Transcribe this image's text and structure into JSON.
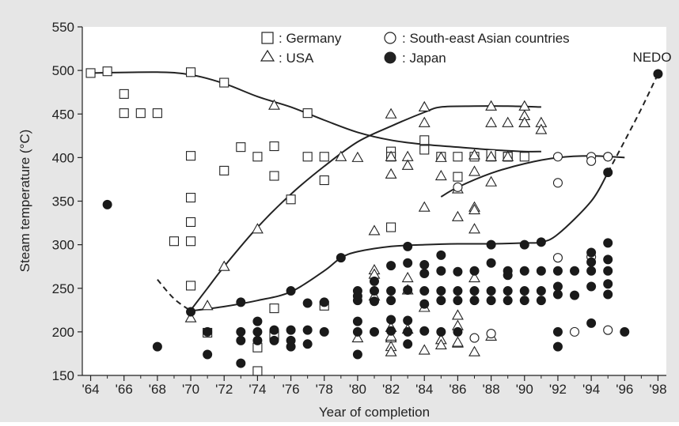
{
  "chart_data": {
    "type": "scatter",
    "xlabel": "Year of completion",
    "ylabel": "Steam temperature (°C)",
    "xlim": [
      1963.5,
      1998.5
    ],
    "ylim": [
      150,
      550
    ],
    "x_ticks": [
      1964,
      1966,
      1968,
      1970,
      1972,
      1974,
      1976,
      1978,
      1980,
      1982,
      1984,
      1986,
      1988,
      1990,
      1992,
      1994,
      1996,
      1998
    ],
    "x_tick_labels": [
      "'64",
      "'66",
      "'68",
      "'70",
      "'72",
      "'74",
      "'76",
      "'78",
      "'80",
      "'82",
      "'84",
      "'86",
      "'88",
      "'90",
      "'92",
      "'94",
      "'96",
      "'98"
    ],
    "y_ticks": [
      150,
      200,
      250,
      300,
      350,
      400,
      450,
      500,
      550
    ],
    "y_tick_labels": [
      "150",
      "200",
      "250",
      "300",
      "350",
      "400",
      "450",
      "500",
      "550"
    ],
    "grid": false,
    "legend_position": "top",
    "legend": [
      {
        "marker": "open-square",
        "label": ": Germany"
      },
      {
        "marker": "open-circle",
        "label": ": South-east Asian countries"
      },
      {
        "marker": "open-triangle",
        "label": ": USA"
      },
      {
        "marker": "filled-circle",
        "label": ":  Japan"
      }
    ],
    "annotations": [
      {
        "text": "NEDO",
        "x": 1998,
        "y": 512
      }
    ],
    "series": [
      {
        "name": "Germany",
        "marker": "open-square",
        "points": [
          [
            1964,
            497
          ],
          [
            1965,
            499
          ],
          [
            1966,
            473
          ],
          [
            1966,
            451
          ],
          [
            1967,
            451
          ],
          [
            1968,
            451
          ],
          [
            1969,
            304
          ],
          [
            1970,
            498
          ],
          [
            1970,
            402
          ],
          [
            1970,
            354
          ],
          [
            1970,
            326
          ],
          [
            1970,
            304
          ],
          [
            1970,
            253
          ],
          [
            1971,
            199
          ],
          [
            1972,
            486
          ],
          [
            1972,
            385
          ],
          [
            1973,
            412
          ],
          [
            1974,
            401
          ],
          [
            1974,
            182
          ],
          [
            1974,
            155
          ],
          [
            1975,
            413
          ],
          [
            1975,
            379
          ],
          [
            1975,
            227
          ],
          [
            1975,
            196
          ],
          [
            1976,
            352
          ],
          [
            1977,
            451
          ],
          [
            1977,
            401
          ],
          [
            1978,
            401
          ],
          [
            1978,
            374
          ],
          [
            1978,
            230
          ],
          [
            1982,
            407
          ],
          [
            1982,
            401
          ],
          [
            1982,
            320
          ],
          [
            1984,
            420
          ],
          [
            1984,
            409
          ],
          [
            1985,
            401
          ],
          [
            1986,
            378
          ],
          [
            1986,
            401
          ],
          [
            1987,
            401
          ],
          [
            1988,
            401
          ],
          [
            1988,
            404
          ],
          [
            1989,
            401
          ],
          [
            1989,
            401
          ],
          [
            1990,
            401
          ]
        ]
      },
      {
        "name": "USA",
        "marker": "open-triangle",
        "points": [
          [
            1970,
            216
          ],
          [
            1971,
            230
          ],
          [
            1972,
            275
          ],
          [
            1974,
            318
          ],
          [
            1975,
            460
          ],
          [
            1979,
            401
          ],
          [
            1980,
            400
          ],
          [
            1980,
            193
          ],
          [
            1981,
            316
          ],
          [
            1981,
            271
          ],
          [
            1981,
            266
          ],
          [
            1981,
            241
          ],
          [
            1982,
            450
          ],
          [
            1982,
            401
          ],
          [
            1982,
            381
          ],
          [
            1982,
            205
          ],
          [
            1982,
            193
          ],
          [
            1982,
            183
          ],
          [
            1982,
            177
          ],
          [
            1982,
            195
          ],
          [
            1983,
            401
          ],
          [
            1983,
            391
          ],
          [
            1983,
            262
          ],
          [
            1983,
            248
          ],
          [
            1983,
            203
          ],
          [
            1984,
            458
          ],
          [
            1984,
            440
          ],
          [
            1984,
            343
          ],
          [
            1984,
            228
          ],
          [
            1984,
            179
          ],
          [
            1985,
            400
          ],
          [
            1985,
            379
          ],
          [
            1985,
            191
          ],
          [
            1985,
            185
          ],
          [
            1986,
            364
          ],
          [
            1986,
            332
          ],
          [
            1986,
            219
          ],
          [
            1986,
            207
          ],
          [
            1986,
            187
          ],
          [
            1987,
            403
          ],
          [
            1987,
            384
          ],
          [
            1987,
            343
          ],
          [
            1987,
            340
          ],
          [
            1987,
            318
          ],
          [
            1987,
            262
          ],
          [
            1987,
            177
          ],
          [
            1988,
            459
          ],
          [
            1988,
            440
          ],
          [
            1988,
            401
          ],
          [
            1988,
            372
          ],
          [
            1988,
            195
          ],
          [
            1989,
            440
          ],
          [
            1989,
            401
          ],
          [
            1990,
            440
          ],
          [
            1990,
            448
          ],
          [
            1990,
            459
          ],
          [
            1990,
            440
          ],
          [
            1991,
            440
          ],
          [
            1991,
            432
          ],
          [
            1986,
            188
          ]
        ]
      },
      {
        "name": "South-east Asian countries",
        "marker": "open-circle",
        "points": [
          [
            1986,
            366
          ],
          [
            1987,
            193
          ],
          [
            1988,
            198
          ],
          [
            1992,
            401
          ],
          [
            1992,
            371
          ],
          [
            1992,
            285
          ],
          [
            1993,
            200
          ],
          [
            1994,
            401
          ],
          [
            1994,
            396
          ],
          [
            1994,
            286
          ],
          [
            1995,
            401
          ],
          [
            1995,
            401
          ],
          [
            1995,
            202
          ]
        ]
      },
      {
        "name": "Japan",
        "marker": "filled-circle",
        "points": [
          [
            1965,
            346
          ],
          [
            1968,
            183
          ],
          [
            1970,
            223
          ],
          [
            1971,
            200
          ],
          [
            1971,
            174
          ],
          [
            1973,
            234
          ],
          [
            1973,
            200
          ],
          [
            1973,
            190
          ],
          [
            1973,
            164
          ],
          [
            1974,
            200
          ],
          [
            1974,
            190
          ],
          [
            1974,
            212
          ],
          [
            1975,
            202
          ],
          [
            1975,
            190
          ],
          [
            1976,
            247
          ],
          [
            1976,
            202
          ],
          [
            1976,
            190
          ],
          [
            1976,
            183
          ],
          [
            1977,
            233
          ],
          [
            1977,
            202
          ],
          [
            1977,
            186
          ],
          [
            1978,
            234
          ],
          [
            1978,
            200
          ],
          [
            1979,
            285
          ],
          [
            1980,
            247
          ],
          [
            1980,
            241
          ],
          [
            1980,
            236
          ],
          [
            1980,
            212
          ],
          [
            1980,
            200
          ],
          [
            1980,
            174
          ],
          [
            1981,
            258
          ],
          [
            1981,
            247
          ],
          [
            1981,
            235
          ],
          [
            1981,
            200
          ],
          [
            1982,
            276
          ],
          [
            1982,
            247
          ],
          [
            1982,
            236
          ],
          [
            1982,
            214
          ],
          [
            1982,
            201
          ],
          [
            1983,
            298
          ],
          [
            1983,
            279
          ],
          [
            1983,
            248
          ],
          [
            1983,
            213
          ],
          [
            1983,
            200
          ],
          [
            1983,
            186
          ],
          [
            1984,
            277
          ],
          [
            1984,
            267
          ],
          [
            1984,
            247
          ],
          [
            1984,
            232
          ],
          [
            1984,
            201
          ],
          [
            1985,
            288
          ],
          [
            1985,
            270
          ],
          [
            1985,
            247
          ],
          [
            1985,
            236
          ],
          [
            1985,
            200
          ],
          [
            1986,
            269
          ],
          [
            1986,
            247
          ],
          [
            1986,
            236
          ],
          [
            1986,
            200
          ],
          [
            1987,
            270
          ],
          [
            1987,
            247
          ],
          [
            1987,
            236
          ],
          [
            1988,
            300
          ],
          [
            1988,
            279
          ],
          [
            1988,
            247
          ],
          [
            1988,
            236
          ],
          [
            1989,
            270
          ],
          [
            1989,
            247
          ],
          [
            1989,
            236
          ],
          [
            1989,
            265
          ],
          [
            1990,
            300
          ],
          [
            1990,
            270
          ],
          [
            1990,
            247
          ],
          [
            1990,
            236
          ],
          [
            1991,
            303
          ],
          [
            1991,
            270
          ],
          [
            1991,
            247
          ],
          [
            1991,
            236
          ],
          [
            1992,
            270
          ],
          [
            1992,
            252
          ],
          [
            1992,
            243
          ],
          [
            1992,
            200
          ],
          [
            1992,
            183
          ],
          [
            1993,
            270
          ],
          [
            1993,
            242
          ],
          [
            1994,
            291
          ],
          [
            1994,
            280
          ],
          [
            1994,
            270
          ],
          [
            1994,
            252
          ],
          [
            1994,
            210
          ],
          [
            1995,
            383
          ],
          [
            1995,
            302
          ],
          [
            1995,
            283
          ],
          [
            1995,
            270
          ],
          [
            1995,
            255
          ],
          [
            1995,
            243
          ],
          [
            1996,
            200
          ],
          [
            1998,
            496
          ]
        ]
      }
    ],
    "trend_lines": [
      {
        "series": "Germany",
        "style": "solid",
        "points": [
          [
            1964,
            497
          ],
          [
            1968,
            498
          ],
          [
            1970,
            495
          ],
          [
            1972,
            485
          ],
          [
            1974,
            470
          ],
          [
            1976,
            458
          ],
          [
            1978,
            443
          ],
          [
            1980,
            429
          ],
          [
            1982,
            420
          ],
          [
            1984,
            415
          ],
          [
            1986,
            412
          ],
          [
            1988,
            409
          ],
          [
            1990,
            407
          ],
          [
            1991,
            407
          ]
        ]
      },
      {
        "series": "USA",
        "style": "solid",
        "points": [
          [
            1970,
            225
          ],
          [
            1971,
            250
          ],
          [
            1972,
            275
          ],
          [
            1974,
            320
          ],
          [
            1976,
            358
          ],
          [
            1978,
            390
          ],
          [
            1980,
            418
          ],
          [
            1982,
            436
          ],
          [
            1984,
            452
          ],
          [
            1985,
            458
          ],
          [
            1987,
            459
          ],
          [
            1989,
            459
          ],
          [
            1991,
            458
          ]
        ]
      },
      {
        "series": "South-east Asian countries",
        "style": "solid",
        "points": [
          [
            1985,
            355
          ],
          [
            1986,
            366
          ],
          [
            1988,
            382
          ],
          [
            1990,
            393
          ],
          [
            1992,
            400
          ],
          [
            1994,
            402
          ],
          [
            1996,
            400
          ]
        ]
      },
      {
        "series": "Japan",
        "style": "dashed",
        "points": [
          [
            1968,
            260
          ],
          [
            1969,
            238
          ],
          [
            1970,
            224
          ]
        ]
      },
      {
        "series": "Japan",
        "style": "solid",
        "points": [
          [
            1970,
            224
          ],
          [
            1972,
            229
          ],
          [
            1974,
            236
          ],
          [
            1976,
            246
          ],
          [
            1978,
            270
          ],
          [
            1979,
            285
          ],
          [
            1980,
            292
          ],
          [
            1982,
            298
          ],
          [
            1984,
            300
          ],
          [
            1986,
            301
          ],
          [
            1988,
            301
          ],
          [
            1990,
            302
          ],
          [
            1991,
            303
          ],
          [
            1992,
            312
          ],
          [
            1994,
            350
          ],
          [
            1995,
            383
          ]
        ]
      },
      {
        "series": "Japan",
        "style": "dashed",
        "points": [
          [
            1995,
            383
          ],
          [
            1996,
            419
          ],
          [
            1997,
            456
          ],
          [
            1998,
            496
          ]
        ]
      }
    ]
  }
}
